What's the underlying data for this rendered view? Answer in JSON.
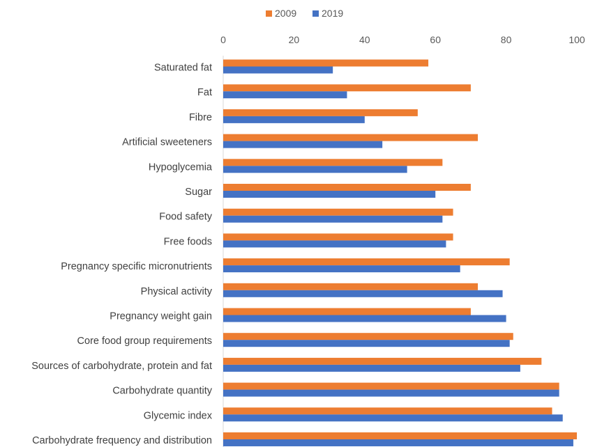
{
  "chart_data": {
    "type": "bar",
    "orientation": "horizontal",
    "title": "",
    "xlabel": "",
    "ylabel": "",
    "xlim": [
      0,
      100
    ],
    "x_ticks": [
      "0",
      "20",
      "40",
      "60",
      "80",
      "100"
    ],
    "x_axis_position": "top",
    "grid": false,
    "legend_position": "top",
    "categories": [
      "Saturated fat",
      "Fat",
      "Fibre",
      "Artificial sweeteners",
      "Hypoglycemia",
      "Sugar",
      "Food safety",
      "Free foods",
      "Pregnancy specific micronutrients",
      "Physical activity",
      "Pregnancy weight gain",
      "Core food group requirements",
      "Sources of carbohydrate, protein and fat",
      "Carbohydrate quantity",
      "Glycemic index",
      "Carbohydrate frequency and distribution"
    ],
    "series": [
      {
        "name": "2009",
        "color": "#ED7D31",
        "values": [
          58,
          70,
          55,
          72,
          62,
          70,
          65,
          65,
          81,
          72,
          70,
          82,
          90,
          95,
          93,
          100
        ]
      },
      {
        "name": "2019",
        "color": "#4472C4",
        "values": [
          31,
          35,
          40,
          45,
          52,
          60,
          62,
          63,
          67,
          79,
          80,
          81,
          84,
          95,
          96,
          99
        ]
      }
    ]
  }
}
